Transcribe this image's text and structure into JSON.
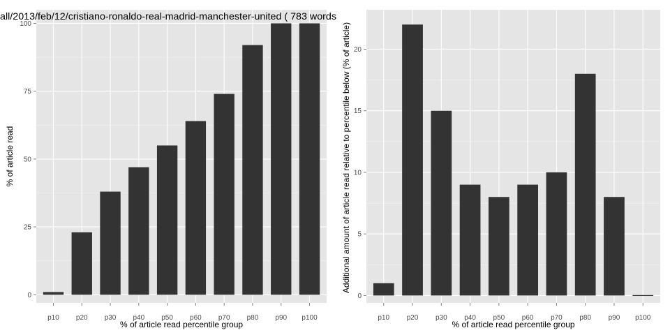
{
  "chart_data": [
    {
      "type": "bar",
      "title": "all/2013/feb/12/cristiano-ronaldo-real-madrid-manchester-united ( 783 words",
      "xlabel": "% of article read percentile group",
      "ylabel": "% of article read",
      "categories": [
        "p10",
        "p20",
        "p30",
        "p40",
        "p50",
        "p60",
        "p70",
        "p80",
        "p90",
        "p100"
      ],
      "values": [
        1,
        23,
        38,
        47,
        55,
        64,
        74,
        92,
        100,
        100
      ],
      "ylim": [
        -3,
        105
      ],
      "yticks": [
        0,
        25,
        50,
        75,
        100
      ],
      "ytick_labels": [
        "0",
        "25",
        "50",
        "75",
        "100"
      ],
      "grid": true
    },
    {
      "type": "bar",
      "title": "",
      "xlabel": "% of article read percentile group",
      "ylabel": "Additional amount of article read relative to percentile below (% of article)",
      "categories": [
        "p10",
        "p20",
        "p30",
        "p40",
        "p50",
        "p60",
        "p70",
        "p80",
        "p90",
        "p100"
      ],
      "values": [
        1,
        22,
        15,
        9,
        8,
        9,
        10,
        18,
        8,
        0
      ],
      "ylim": [
        -0.6,
        23.2
      ],
      "yticks": [
        0,
        5,
        10,
        15,
        20
      ],
      "ytick_labels": [
        "0",
        "5",
        "10",
        "15",
        "20"
      ],
      "grid": true
    }
  ],
  "colors": {
    "panel_background": "#e5e5e5",
    "bar_fill": "#333333",
    "grid": "#ffffff",
    "tick_text": "#4d4d4d"
  }
}
